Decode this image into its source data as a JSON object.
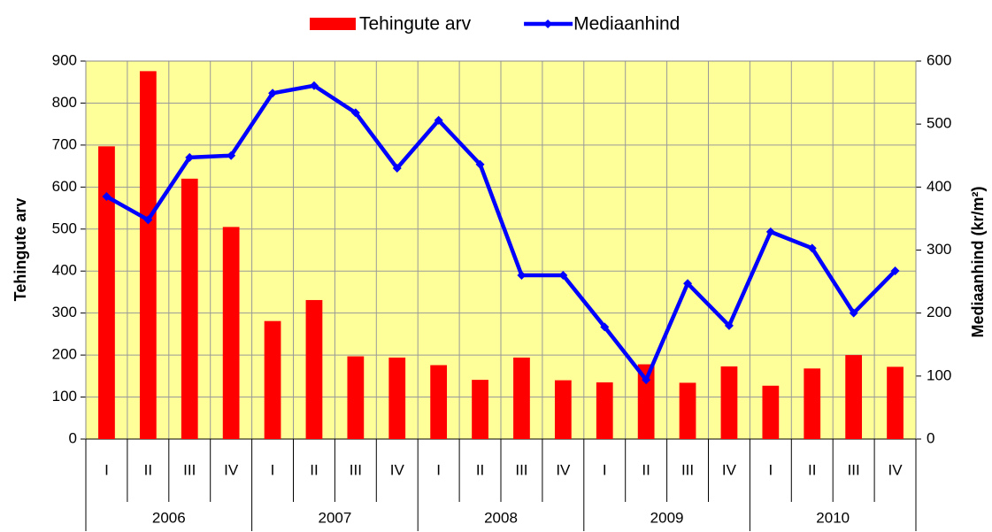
{
  "chart_data": {
    "type": "bar_line",
    "legend": "top",
    "grid": true,
    "plot_background": "#ffff99",
    "ylabel": "Tehingute arv",
    "y2label": "Mediaanhind (kr/m²)",
    "groups": [
      {
        "name": "2006",
        "categories": [
          "I",
          "II",
          "III",
          "IV"
        ]
      },
      {
        "name": "2007",
        "categories": [
          "I",
          "II",
          "III",
          "IV"
        ]
      },
      {
        "name": "2008",
        "categories": [
          "I",
          "II",
          "III",
          "IV"
        ]
      },
      {
        "name": "2009",
        "categories": [
          "I",
          "II",
          "III",
          "IV"
        ]
      },
      {
        "name": "2010",
        "categories": [
          "I",
          "II",
          "III",
          "IV"
        ]
      }
    ],
    "ylim": [
      0,
      900
    ],
    "yticks": [
      0,
      100,
      200,
      300,
      400,
      500,
      600,
      700,
      800,
      900
    ],
    "y2lim": [
      0,
      600
    ],
    "y2ticks": [
      0,
      100,
      200,
      300,
      400,
      500,
      600
    ],
    "series": [
      {
        "name": "Tehingute arv",
        "type": "bar",
        "color": "#ff0000",
        "values": [
          697,
          876,
          620,
          505,
          281,
          331,
          197,
          194,
          176,
          141,
          194,
          140,
          135,
          178,
          134,
          173,
          127,
          168,
          200,
          172
        ]
      },
      {
        "name": "Mediaanhind",
        "type": "line",
        "axis": "y2",
        "color": "#0000ff",
        "values": [
          385,
          348,
          447,
          450,
          549,
          561,
          518,
          430,
          506,
          436,
          260,
          260,
          178,
          94,
          247,
          180,
          329,
          303,
          200,
          267
        ]
      }
    ]
  }
}
